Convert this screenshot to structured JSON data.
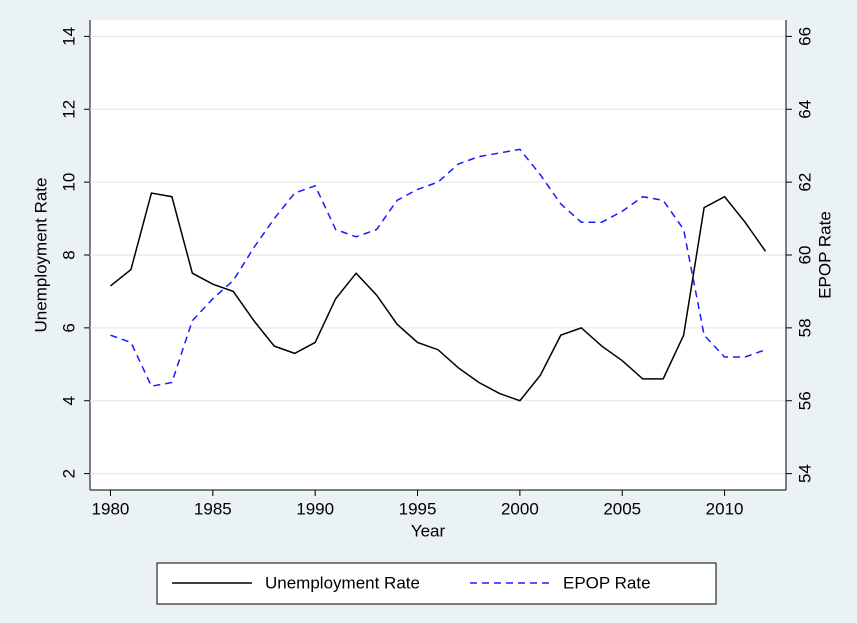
{
  "chart_data": {
    "type": "line",
    "x": [
      1980,
      1981,
      1982,
      1983,
      1984,
      1985,
      1986,
      1987,
      1988,
      1989,
      1990,
      1991,
      1992,
      1993,
      1994,
      1995,
      1996,
      1997,
      1998,
      1999,
      2000,
      2001,
      2002,
      2003,
      2004,
      2005,
      2006,
      2007,
      2008,
      2009,
      2010,
      2011,
      2012
    ],
    "series": [
      {
        "name": "Unemployment Rate",
        "color": "#000000",
        "dash": "solid",
        "values": [
          7.15,
          7.6,
          9.7,
          9.6,
          7.5,
          7.2,
          7.0,
          6.2,
          5.5,
          5.3,
          5.6,
          6.8,
          7.5,
          6.9,
          6.1,
          5.6,
          5.4,
          4.9,
          4.5,
          4.2,
          4.0,
          4.7,
          5.8,
          6.0,
          5.5,
          5.1,
          4.6,
          4.6,
          5.8,
          9.3,
          9.6,
          8.9,
          8.1
        ]
      },
      {
        "name": "EPOP Rate",
        "color": "#1a1aff",
        "dash": "dashed",
        "axis": "y2",
        "values": [
          57.8,
          57.6,
          56.4,
          56.5,
          58.2,
          58.8,
          59.3,
          60.2,
          61.0,
          61.7,
          61.9,
          60.7,
          60.5,
          60.7,
          61.5,
          61.8,
          62.0,
          62.5,
          62.7,
          62.8,
          62.9,
          62.2,
          61.4,
          60.9,
          60.9,
          61.2,
          61.6,
          61.5,
          60.7,
          57.8,
          57.2,
          57.2,
          57.4
        ]
      }
    ],
    "xlabel": "Year",
    "ylabel": "Unemployment Rate",
    "y2label": "EPOP Rate",
    "xlim": [
      1979,
      2013
    ],
    "xticks": [
      1980,
      1985,
      1990,
      1995,
      2000,
      2005,
      2010
    ],
    "ylim": [
      1.55,
      14.45
    ],
    "yticks": [
      2,
      4,
      6,
      8,
      10,
      12,
      14
    ],
    "y2lim": [
      53.55,
      66.45
    ],
    "y2ticks": [
      54,
      56,
      58,
      60,
      62,
      64,
      66
    ],
    "grid": true,
    "legend": "bottom"
  }
}
